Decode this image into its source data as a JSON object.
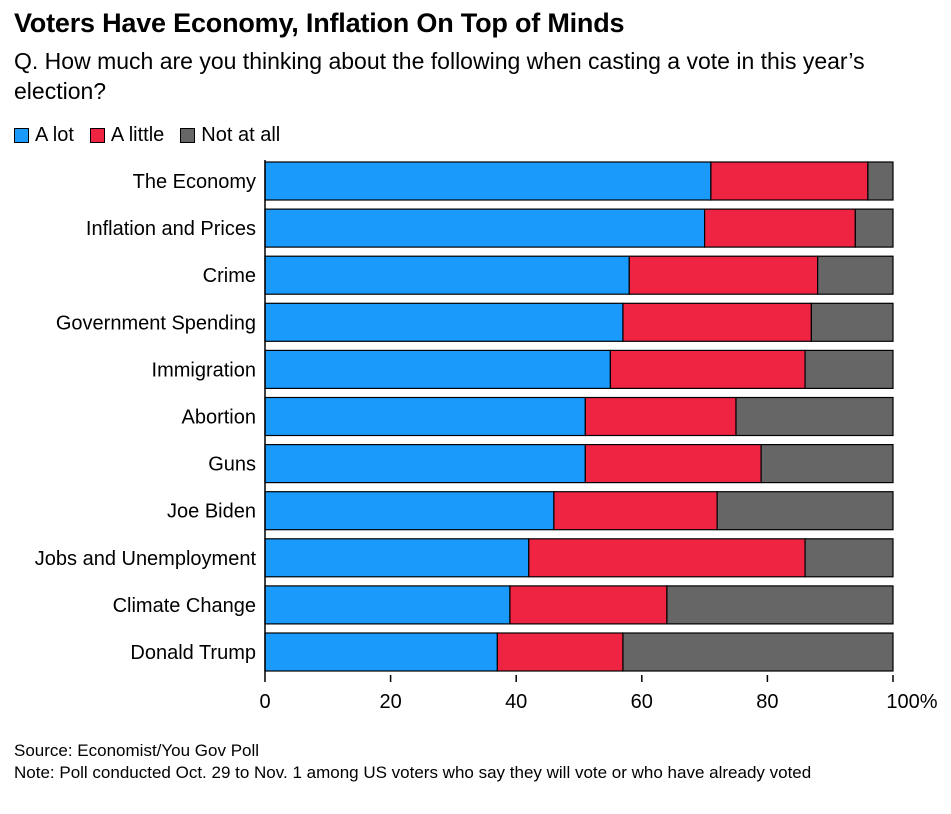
{
  "header": {
    "title": "Voters Have Economy, Inflation On Top of Minds",
    "subtitle": "Q. How much are you thinking about the following when casting a vote in this year’s election?"
  },
  "legend": [
    {
      "label": "A lot",
      "color": "#1a9bfc"
    },
    {
      "label": "A little",
      "color": "#ee2442"
    },
    {
      "label": "Not at all",
      "color": "#666666"
    }
  ],
  "chart_data": {
    "type": "bar",
    "orientation": "horizontal",
    "stacked": true,
    "categories": [
      "The Economy",
      "Inflation and Prices",
      "Crime",
      "Government Spending",
      "Immigration",
      "Abortion",
      "Guns",
      "Joe Biden",
      "Jobs and Unemployment",
      "Climate Change",
      "Donald Trump"
    ],
    "series": [
      {
        "name": "A lot",
        "color": "#1a9bfc",
        "values": [
          71,
          70,
          58,
          57,
          55,
          51,
          51,
          46,
          42,
          39,
          37
        ]
      },
      {
        "name": "A little",
        "color": "#ee2442",
        "values": [
          25,
          24,
          30,
          30,
          31,
          24,
          28,
          26,
          44,
          25,
          20
        ]
      },
      {
        "name": "Not at all",
        "color": "#666666",
        "values": [
          4,
          6,
          12,
          13,
          14,
          25,
          21,
          28,
          14,
          36,
          43
        ]
      }
    ],
    "xlim": [
      0,
      100
    ],
    "xticks": [
      "0",
      "20",
      "40",
      "60",
      "80",
      "100%"
    ],
    "grid": false,
    "legend_position": "top-left"
  },
  "footer": {
    "source": "Source: Economist/You Gov Poll",
    "note": "Note: Poll conducted Oct. 29 to Nov. 1 among US voters who say they will vote or who have already voted"
  }
}
